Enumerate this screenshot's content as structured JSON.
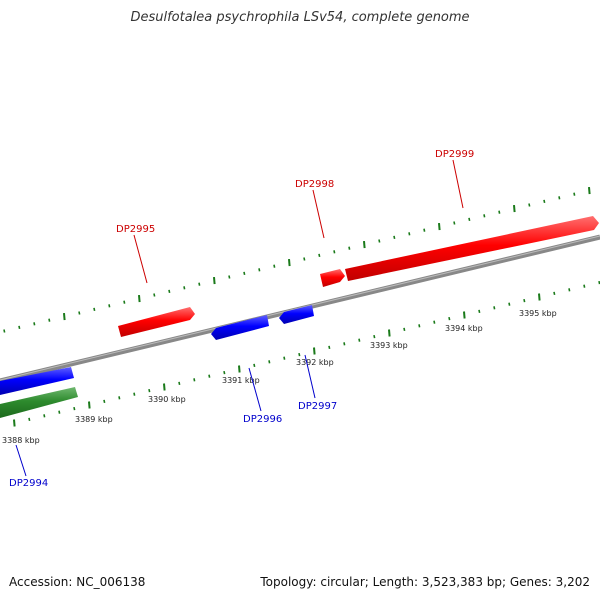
{
  "title": "Desulfotalea psychrophila LSv54, complete genome",
  "footer": {
    "accession": "Accession: NC_006138",
    "topology": "Topology: circular; Length: 3,523,383 bp; Genes: 3,202"
  },
  "colors": {
    "forward_gene": "#ff0000",
    "reverse_gene": "#0000ff",
    "rna_gene": "#2e8b2e",
    "backbone": "#888888",
    "tick": "#1a7a1a",
    "forward_label": "#cc0000",
    "reverse_label": "#0000cc"
  },
  "kbp_labels": [
    {
      "value": 3388,
      "text": "3388 kbp"
    },
    {
      "value": 3389,
      "text": "3389 kbp"
    },
    {
      "value": 3390,
      "text": "3390 kbp"
    },
    {
      "value": 3391,
      "text": "3391 kbp"
    },
    {
      "value": 3392,
      "text": "3392 kbp"
    },
    {
      "value": 3393,
      "text": "3393 kbp"
    },
    {
      "value": 3394,
      "text": "3394 kbp"
    },
    {
      "value": 3395,
      "text": "3395 kbp"
    }
  ],
  "gene_labels": [
    {
      "name": "DP2995",
      "strand": "forward"
    },
    {
      "name": "DP2998",
      "strand": "forward"
    },
    {
      "name": "DP2999",
      "strand": "forward"
    },
    {
      "name": "DP2994",
      "strand": "reverse"
    },
    {
      "name": "DP2996",
      "strand": "reverse"
    },
    {
      "name": "DP2997",
      "strand": "reverse"
    }
  ]
}
